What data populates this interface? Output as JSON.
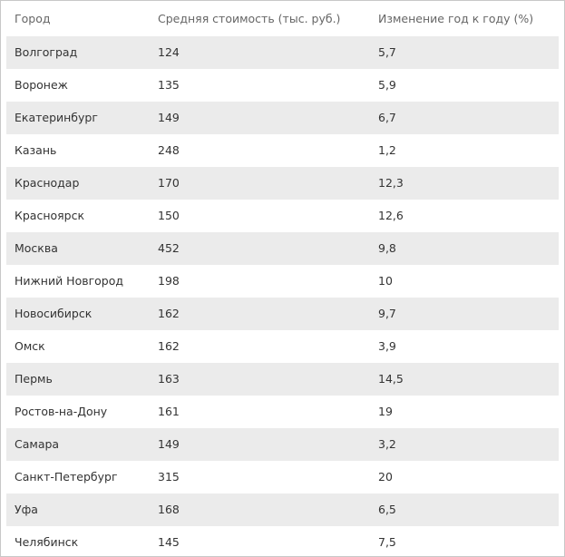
{
  "table": {
    "header": [
      "Город",
      "Средняя стоимость (тыс. руб.)",
      "Изменение год к году (%)"
    ],
    "rows": [
      [
        "Волгоград",
        "124",
        "5,7"
      ],
      [
        "Воронеж",
        "135",
        "5,9"
      ],
      [
        "Екатеринбург",
        "149",
        "6,7"
      ],
      [
        "Казань",
        "248",
        "1,2"
      ],
      [
        "Краснодар",
        "170",
        "12,3"
      ],
      [
        "Красноярск",
        "150",
        "12,6"
      ],
      [
        "Москва",
        "452",
        "9,8"
      ],
      [
        "Нижний Новгород",
        "198",
        "10"
      ],
      [
        "Новосибирск",
        "162",
        "9,7"
      ],
      [
        "Омск",
        "162",
        "3,9"
      ],
      [
        "Пермь",
        "163",
        "14,5"
      ],
      [
        "Ростов-на-Дону",
        "161",
        "19"
      ],
      [
        "Самара",
        "149",
        "3,2"
      ],
      [
        "Санкт-Петербург",
        "315",
        "20"
      ],
      [
        "Уфа",
        "168",
        "6,5"
      ],
      [
        "Челябинск",
        "145",
        "7,5"
      ]
    ]
  }
}
